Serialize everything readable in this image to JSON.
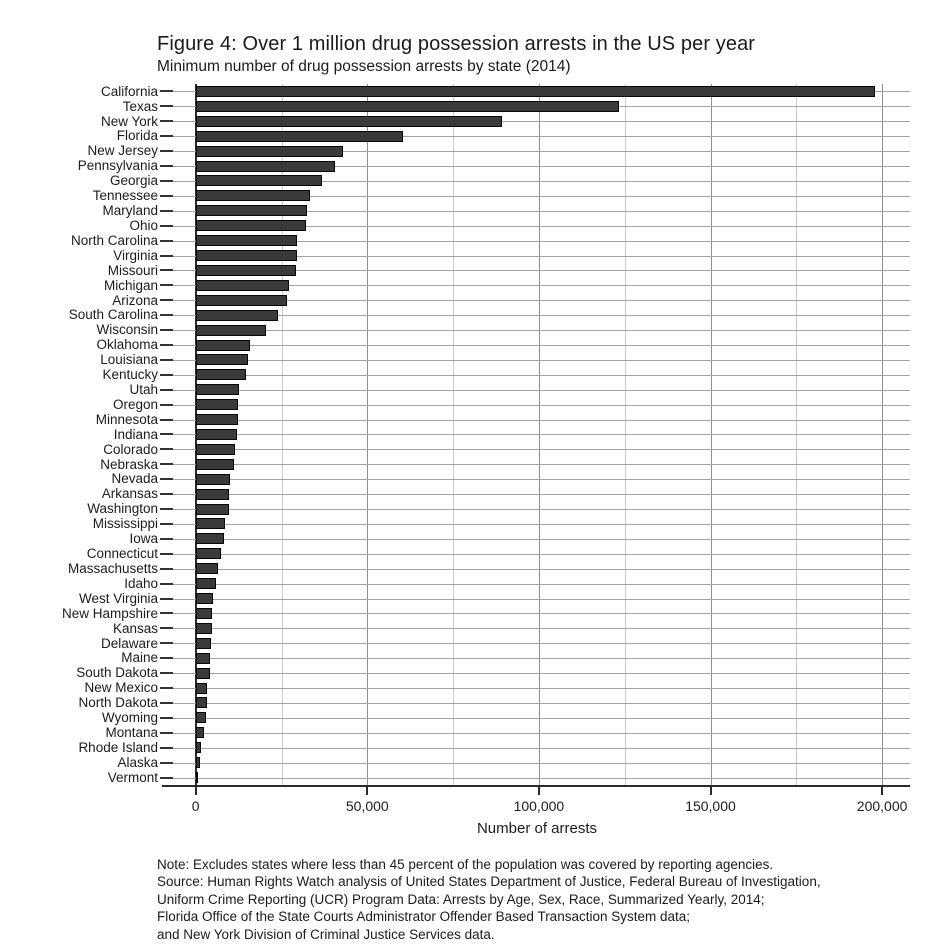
{
  "figure": {
    "title": "Figure 4: Over 1 million drug possession arrests in the US per year",
    "subtitle": "Minimum number of drug possession arrests by state (2014)",
    "xlabel": "Number of arrests",
    "note_lines": [
      "Note: Excludes states where less than 45 percent of the population was covered by reporting agencies.",
      "Source: Human Rights Watch analysis of United States Department of Justice, Federal Bureau of Investigation,",
      "Uniform Crime Reporting (UCR) Program Data: Arrests by Age, Sex, Race, Summarized Yearly, 2014;",
      "Florida Office of the State Courts Administrator Offender Based Transaction System data;",
      "and New York Division of Criminal Justice Services data."
    ]
  },
  "chart_data": {
    "type": "bar",
    "orientation": "horizontal",
    "title": "Figure 4: Over 1 million drug possession arrests in the US per year",
    "subtitle": "Minimum number of drug possession arrests by state (2014)",
    "xlabel": "Number of arrests",
    "ylabel": "",
    "xlim": [
      0,
      209000
    ],
    "grid": true,
    "legend": false,
    "bar_color": "#3a3a3a",
    "x_ticks": [
      {
        "value": 0,
        "label": "0"
      },
      {
        "value": 50000,
        "label": "50,000"
      },
      {
        "value": 100000,
        "label": "100,000"
      },
      {
        "value": 150000,
        "label": "150,000"
      },
      {
        "value": 200000,
        "label": "200,000"
      }
    ],
    "minor_tick_values": [
      25000,
      75000,
      125000,
      175000
    ],
    "categories": [
      "California",
      "Texas",
      "New York",
      "Florida",
      "New Jersey",
      "Pennsylvania",
      "Georgia",
      "Tennessee",
      "Maryland",
      "Ohio",
      "North Carolina",
      "Virginia",
      "Missouri",
      "Michigan",
      "Arizona",
      "South Carolina",
      "Wisconsin",
      "Oklahoma",
      "Louisiana",
      "Kentucky",
      "Utah",
      "Oregon",
      "Minnesota",
      "Indiana",
      "Colorado",
      "Nebraska",
      "Nevada",
      "Arkansas",
      "Washington",
      "Mississippi",
      "Iowa",
      "Connecticut",
      "Massachusetts",
      "Idaho",
      "West Virginia",
      "New Hampshire",
      "Kansas",
      "Delaware",
      "Maine",
      "South Dakota",
      "New Mexico",
      "North Dakota",
      "Wyoming",
      "Montana",
      "Rhode Island",
      "Alaska",
      "Vermont"
    ],
    "values": [
      198000,
      123300,
      89200,
      60500,
      42800,
      40700,
      36700,
      33200,
      32400,
      32200,
      29600,
      29400,
      29200,
      27200,
      26600,
      24100,
      20400,
      15700,
      15300,
      14700,
      12700,
      12300,
      12200,
      12100,
      11600,
      11200,
      10000,
      9700,
      9600,
      8600,
      8200,
      7300,
      6400,
      5900,
      5000,
      4700,
      4650,
      4600,
      4300,
      4200,
      3450,
      3250,
      2950,
      2400,
      1700,
      1400,
      800
    ]
  }
}
